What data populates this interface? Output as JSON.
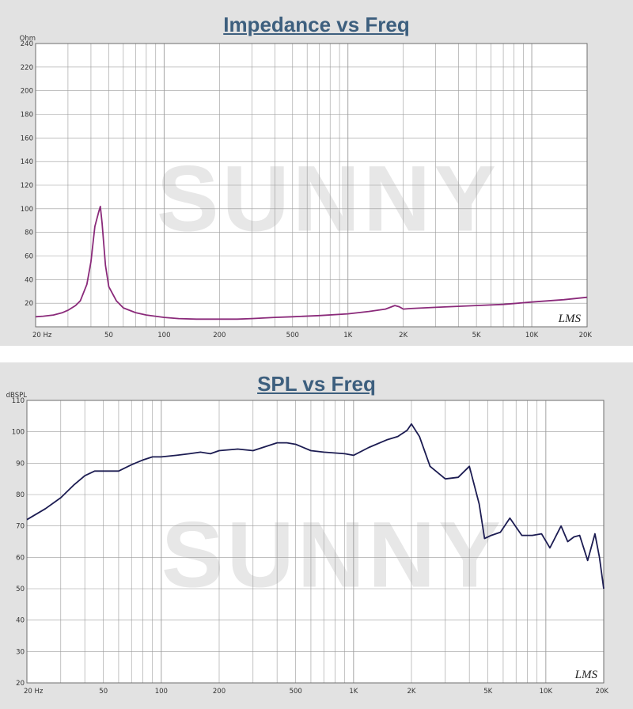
{
  "watermark": "SUNNY",
  "badge": "LMS",
  "chart_data": [
    {
      "type": "line",
      "title": "Impedance vs Freq",
      "ylabel": "Ohm",
      "xscale": "log",
      "xlim": [
        20,
        20000
      ],
      "ylim": [
        0,
        240
      ],
      "yticks": [
        0,
        20,
        40,
        60,
        80,
        100,
        120,
        140,
        160,
        180,
        200,
        220,
        240
      ],
      "ytick_labels": [
        "",
        "20",
        "40",
        "60",
        "80",
        "100",
        "120",
        "140",
        "160",
        "180",
        "200",
        "220",
        "240"
      ],
      "xticks": [
        20,
        50,
        100,
        200,
        500,
        1000,
        2000,
        5000,
        10000,
        20000
      ],
      "xtick_labels": [
        "20  Hz",
        "50",
        "100",
        "200",
        "500",
        "1K",
        "2K",
        "5K",
        "10K",
        "20K"
      ],
      "grid": true,
      "line_color": "#8a2a7a",
      "series": [
        {
          "x": [
            20,
            22,
            25,
            28,
            30,
            33,
            35,
            38,
            40,
            42,
            44,
            45,
            46,
            48,
            50,
            55,
            60,
            70,
            80,
            100,
            120,
            150,
            200,
            250,
            300,
            400,
            500,
            700,
            1000,
            1300,
            1600,
            1800,
            1900,
            2000,
            2200,
            3000,
            5000,
            7000,
            10000,
            15000,
            20000
          ],
          "y": [
            8.5,
            9,
            10,
            12,
            14,
            18,
            22,
            36,
            55,
            85,
            97,
            102,
            88,
            52,
            34,
            22,
            16,
            12,
            10,
            8,
            7,
            6.5,
            6.5,
            6.5,
            7,
            8,
            8.5,
            9.5,
            11,
            13,
            15,
            18,
            17,
            15,
            15.5,
            16.5,
            18,
            19,
            21,
            23,
            25
          ]
        }
      ]
    },
    {
      "type": "line",
      "title": "SPL vs Freq",
      "ylabel": "dBSPL",
      "xscale": "log",
      "xlim": [
        20,
        20000
      ],
      "ylim": [
        20,
        110
      ],
      "yticks": [
        20,
        30,
        40,
        50,
        60,
        70,
        80,
        90,
        100,
        110
      ],
      "ytick_labels": [
        "20",
        "30",
        "40",
        "50",
        "60",
        "70",
        "80",
        "90",
        "100",
        "110"
      ],
      "xticks": [
        20,
        50,
        100,
        200,
        500,
        1000,
        2000,
        5000,
        10000,
        20000
      ],
      "xtick_labels": [
        "20  Hz",
        "50",
        "100",
        "200",
        "500",
        "1K",
        "2K",
        "5K",
        "10K",
        "20K"
      ],
      "grid": true,
      "line_color": "#1c1c52",
      "series": [
        {
          "x": [
            20,
            25,
            30,
            35,
            40,
            45,
            50,
            60,
            70,
            80,
            90,
            100,
            120,
            140,
            160,
            180,
            200,
            250,
            300,
            400,
            450,
            500,
            600,
            700,
            900,
            1000,
            1200,
            1500,
            1700,
            1900,
            2000,
            2200,
            2500,
            3000,
            3500,
            4000,
            4500,
            4800,
            5200,
            5800,
            6500,
            7500,
            8500,
            9500,
            10500,
            12000,
            13000,
            14000,
            15000,
            16500,
            18000,
            19000,
            20000
          ],
          "y": [
            72,
            75.5,
            79,
            83,
            86,
            87.5,
            87.5,
            87.5,
            89.5,
            91,
            92,
            92,
            92.5,
            93,
            93.5,
            93,
            94,
            94.5,
            94,
            96.5,
            96.5,
            96,
            94,
            93.5,
            93,
            92.5,
            95,
            97.5,
            98.5,
            100.5,
            102.5,
            98.5,
            89,
            85,
            85.5,
            89,
            77,
            66,
            67,
            68,
            72.5,
            67,
            67,
            67.5,
            63,
            70,
            65,
            66.5,
            67,
            59,
            67.5,
            60,
            50
          ]
        }
      ]
    }
  ]
}
